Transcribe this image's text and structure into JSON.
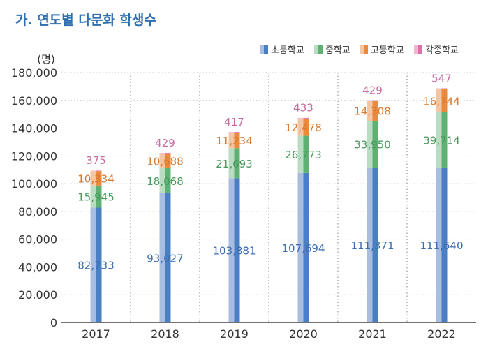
{
  "chart_data": {
    "type": "bar",
    "stacked": true,
    "title": "가. 연도별 다문화 학생수",
    "ylabel": "(명)",
    "xlabel": "",
    "categories": [
      "2017",
      "2018",
      "2019",
      "2020",
      "2021",
      "2022"
    ],
    "ylim": [
      0,
      180000
    ],
    "yticks": [
      "0",
      "20.000",
      "40,000",
      "60,000",
      "80,000",
      "100,000",
      "120,000",
      "140,000",
      "160,000",
      "180,000"
    ],
    "grid": "vertical dotted",
    "legend_position": "top-right",
    "series": [
      {
        "name": "초등학교",
        "values": [
          82733,
          93027,
          103881,
          107694,
          111371,
          111640
        ],
        "labels": [
          "82,733",
          "93,027",
          "103,881",
          "107,694",
          "111,371",
          "111,640"
        ],
        "color": "#4a7fc4",
        "color_light": "#a9bde0",
        "label_color": "#3d6fae"
      },
      {
        "name": "중학교",
        "values": [
          15945,
          18068,
          21693,
          26773,
          33950,
          39714
        ],
        "labels": [
          "15,945",
          "18,068",
          "21,693",
          "26,773",
          "33,950",
          "39,714"
        ],
        "color": "#5fb173",
        "color_light": "#b9dcc2",
        "label_color": "#4a9a5e"
      },
      {
        "name": "고등학교",
        "values": [
          10334,
          10688,
          11234,
          12478,
          14308,
          16744
        ],
        "labels": [
          "10,334",
          "10,688",
          "11,234",
          "12,478",
          "14,308",
          "16,744"
        ],
        "color": "#e98a3f",
        "color_light": "#f4c6a3",
        "label_color": "#d9792f"
      },
      {
        "name": "각종학교",
        "values": [
          375,
          429,
          417,
          433,
          429,
          547
        ],
        "labels": [
          "375",
          "429",
          "417",
          "433",
          "429",
          "547"
        ],
        "color": "#dc6fa8",
        "color_light": "#efb7d4",
        "label_color": "#c66b9d"
      }
    ]
  }
}
